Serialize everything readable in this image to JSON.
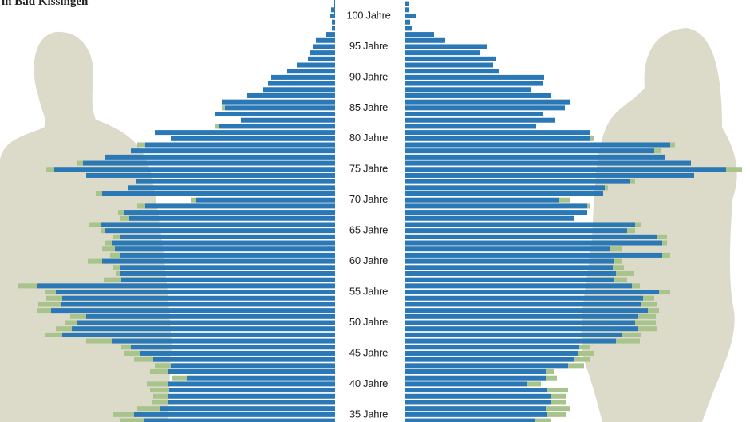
{
  "chart_data": {
    "type": "population-pyramid",
    "title": "in Bad Kissingen",
    "categories": [
      null,
      null,
      "100 Jahre",
      null,
      null,
      null,
      null,
      "95 Jahre",
      null,
      null,
      null,
      null,
      "90 Jahre",
      null,
      null,
      null,
      null,
      "85 Jahre",
      null,
      null,
      null,
      null,
      "80 Jahre",
      null,
      null,
      null,
      null,
      "75 Jahre",
      null,
      null,
      null,
      null,
      "70 Jahre",
      null,
      null,
      null,
      null,
      "65 Jahre",
      null,
      null,
      null,
      null,
      "60 Jahre",
      null,
      null,
      null,
      null,
      "55 Jahre",
      null,
      null,
      null,
      null,
      "50 Jahre",
      null,
      null,
      null,
      null,
      "45 Jahre",
      null,
      null,
      null,
      null,
      "40 Jahre",
      null,
      null,
      null,
      null,
      "35 Jahre",
      null
    ],
    "left_series": [
      {
        "color": "#2a78b6",
        "values": [
          2,
          5,
          6,
          4,
          4,
          12,
          24,
          28,
          32,
          34,
          48,
          60,
          80,
          84,
          90,
          110,
          142,
          138,
          150,
          118,
          146,
          226,
          206,
          238,
          256,
          288,
          316,
          352,
          312,
          250,
          260,
          292,
          174,
          238,
          264,
          258,
          294,
          288,
          270,
          280,
          276,
          270,
          292,
          270,
          270,
          268,
          374,
          350,
          342,
          344,
          356,
          312,
          324,
          330,
          342,
          280,
          256,
          244,
          228,
          206,
          210,
          186,
          210,
          208,
          210,
          210,
          220,
          252,
          240
        ]
      },
      {
        "color": "#a8c48c",
        "values": [
          0,
          0,
          0,
          0,
          0,
          0,
          0,
          0,
          0,
          0,
          0,
          0,
          0,
          0,
          0,
          0,
          0,
          4,
          0,
          0,
          4,
          0,
          0,
          10,
          0,
          0,
          8,
          10,
          0,
          0,
          0,
          8,
          6,
          10,
          8,
          12,
          14,
          6,
          8,
          8,
          16,
          12,
          18,
          8,
          4,
          22,
          24,
          14,
          20,
          28,
          18,
          20,
          14,
          20,
          22,
          32,
          12,
          20,
          24,
          20,
          22,
          18,
          26,
          24,
          18,
          20,
          28,
          26,
          30
        ]
      }
    ],
    "right_series": [
      {
        "color": "#2a78b6",
        "values": [
          4,
          4,
          14,
          6,
          8,
          36,
          50,
          102,
          94,
          114,
          110,
          118,
          174,
          172,
          158,
          182,
          206,
          200,
          172,
          188,
          164,
          232,
          232,
          332,
          312,
          326,
          358,
          402,
          362,
          282,
          250,
          248,
          192,
          228,
          228,
          212,
          288,
          278,
          316,
          322,
          256,
          322,
          262,
          260,
          264,
          262,
          284,
          318,
          298,
          296,
          304,
          292,
          288,
          292,
          272,
          264,
          218,
          216,
          212,
          204,
          176,
          176,
          152,
          178,
          182,
          182,
          176,
          178,
          162
        ]
      },
      {
        "color": "#a8c48c",
        "values": [
          0,
          0,
          0,
          0,
          0,
          0,
          0,
          0,
          0,
          0,
          0,
          0,
          0,
          0,
          0,
          0,
          0,
          0,
          0,
          0,
          0,
          0,
          4,
          6,
          8,
          0,
          0,
          20,
          0,
          6,
          4,
          0,
          14,
          4,
          0,
          0,
          8,
          10,
          12,
          6,
          16,
          10,
          10,
          14,
          22,
          16,
          10,
          14,
          14,
          20,
          14,
          22,
          26,
          24,
          24,
          30,
          14,
          20,
          20,
          20,
          10,
          14,
          18,
          26,
          20,
          20,
          30,
          24,
          20
        ]
      }
    ]
  }
}
